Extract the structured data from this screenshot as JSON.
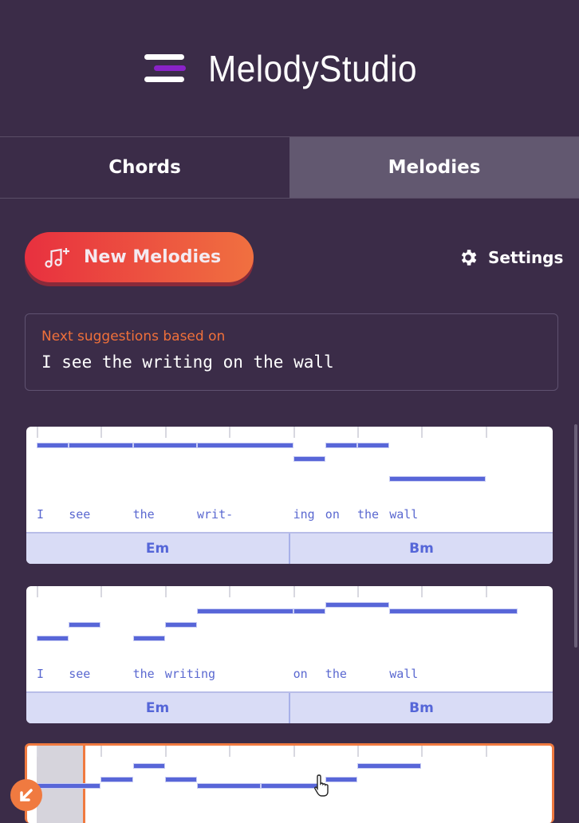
{
  "app": {
    "title": "MelodyStudio"
  },
  "tabs": [
    {
      "label": "Chords",
      "active": false
    },
    {
      "label": "Melodies",
      "active": true
    }
  ],
  "toolbar": {
    "new_label": "New Melodies",
    "new_icon": "music-note-plus-icon",
    "settings_label": "Settings",
    "settings_icon": "gear-icon"
  },
  "suggestion": {
    "label": "Next suggestions based on",
    "text": "I see the writing on the wall"
  },
  "colors": {
    "accent": "#f07a40",
    "note": "#5866d8",
    "chord_bg": "#d9dcf6",
    "background": "#3b2c48"
  },
  "melodies": [
    {
      "notes": [
        [
          0,
          1,
          5
        ],
        [
          1,
          2,
          5
        ],
        [
          3,
          2,
          5
        ],
        [
          5,
          3,
          5
        ],
        [
          8,
          1,
          3
        ],
        [
          9,
          1,
          5
        ],
        [
          10,
          1,
          5
        ],
        [
          11,
          3,
          0
        ]
      ],
      "lyrics": [
        [
          "I",
          0
        ],
        [
          "see",
          1
        ],
        [
          "the",
          3
        ],
        [
          "writ-",
          5
        ],
        [
          "ing",
          8
        ],
        [
          "on",
          9
        ],
        [
          "the",
          10
        ],
        [
          "wall",
          11
        ]
      ],
      "chords": [
        "Em",
        "Bm"
      ]
    },
    {
      "notes": [
        [
          0,
          1,
          0
        ],
        [
          1,
          1,
          2
        ],
        [
          3,
          1,
          0
        ],
        [
          4,
          1,
          2
        ],
        [
          5,
          3,
          4
        ],
        [
          8,
          1,
          4
        ],
        [
          9,
          2,
          5
        ],
        [
          11,
          4,
          4
        ]
      ],
      "lyrics": [
        [
          "I",
          0
        ],
        [
          "see",
          1
        ],
        [
          "the",
          3
        ],
        [
          "writing",
          4
        ],
        [
          "on",
          8
        ],
        [
          "the",
          9
        ],
        [
          "wall",
          11
        ]
      ],
      "chords": [
        "Em",
        "Bm"
      ]
    },
    {
      "selected": true,
      "playback_position_beats": 0.75,
      "notes": [
        [
          0,
          2,
          2
        ],
        [
          2,
          1,
          3
        ],
        [
          3,
          1,
          5
        ],
        [
          4,
          1,
          3
        ],
        [
          5,
          2,
          2
        ],
        [
          7,
          2,
          2
        ],
        [
          9,
          1,
          3
        ],
        [
          10,
          2,
          5
        ]
      ]
    }
  ]
}
